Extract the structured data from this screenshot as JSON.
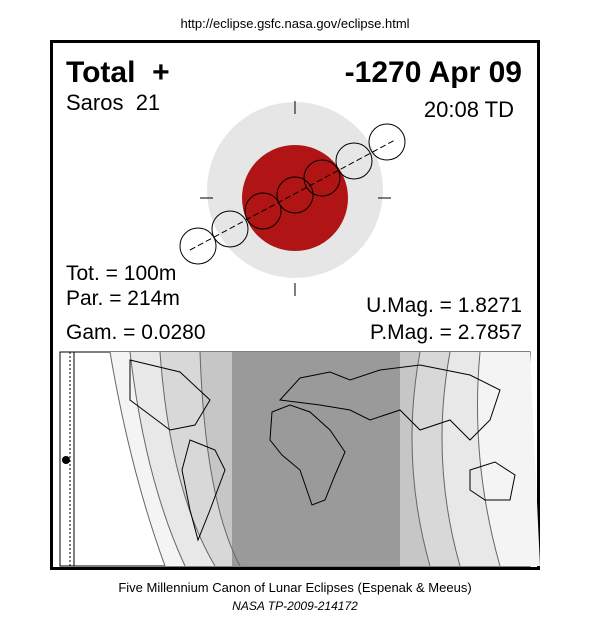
{
  "header": {
    "url": "http://eclipse.gsfc.nasa.gov/eclipse.html"
  },
  "eclipse": {
    "type": "Total  +",
    "saros": "Saros  21",
    "date": "-1270 Apr 09",
    "time": "20:08 TD",
    "tot": "Tot. = 100m",
    "par": "Par. = 214m",
    "gam": "Gam. = 0.0280",
    "umag": "U.Mag. = 1.8271",
    "pmag": "P.Mag. = 2.7857"
  },
  "footer": {
    "line1": "Five Millennium Canon of Lunar Eclipses (Espenak & Meeus)",
    "line2": "NASA TP-2009-214172"
  }
}
